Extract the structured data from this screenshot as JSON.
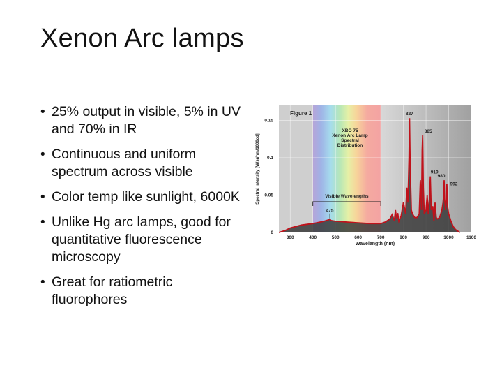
{
  "slide": {
    "title": "Xenon Arc lamps",
    "bullets": [
      "25% output in visible, 5% in UV and 70% in IR",
      "Continuous and uniform spectrum across visible",
      "Color temp like sunlight, 6000K",
      "Unlike Hg arc lamps, good for quantitative fluorescence microscopy",
      "Great for ratiometric fluorophores"
    ]
  },
  "chart_data": {
    "type": "line",
    "title": "Figure 1",
    "subtitle": "XBO 75 Xenon Arc Lamp Spectral Distribution",
    "xlabel": "Wavelength (nm)",
    "ylabel": "Spectral Intensity [W/sr/nm/1000cd]",
    "xlim": [
      250,
      1100
    ],
    "ylim": [
      0,
      0.17
    ],
    "x_ticks": [
      "300",
      "400",
      "500",
      "600",
      "700",
      "800",
      "900",
      "1000",
      "1100"
    ],
    "y_ticks": [
      "0",
      "0.05",
      "0.1",
      "0.15"
    ],
    "grid": true,
    "visible_band": {
      "label": "Visible Wavelengths",
      "range": [
        400,
        700
      ]
    },
    "peak_labels": [
      {
        "x": 475,
        "y": 0.018,
        "label": "475"
      },
      {
        "x": 827,
        "y": 0.153,
        "label": "827"
      },
      {
        "x": 885,
        "y": 0.13,
        "label": "885"
      },
      {
        "x": 919,
        "y": 0.075,
        "label": "919"
      },
      {
        "x": 980,
        "y": 0.07,
        "label": "980"
      },
      {
        "x": 992,
        "y": 0.065,
        "label": "992"
      }
    ],
    "series": [
      {
        "x": [
          250,
          280,
          300,
          350,
          400,
          450,
          470,
          475,
          480,
          500,
          550,
          600,
          650,
          700,
          720,
          740,
          750,
          760,
          765,
          770,
          775,
          780,
          790,
          800,
          810,
          815,
          820,
          825,
          827,
          830,
          835,
          840,
          850,
          860,
          870,
          875,
          880,
          883,
          885,
          888,
          892,
          900,
          905,
          910,
          915,
          919,
          923,
          930,
          935,
          940,
          945,
          950,
          960,
          970,
          975,
          978,
          980,
          982,
          986,
          990,
          992,
          995,
          1000,
          1010,
          1020,
          1030,
          1040,
          1050
        ],
        "y": [
          0.0,
          0.003,
          0.006,
          0.01,
          0.012,
          0.015,
          0.017,
          0.018,
          0.016,
          0.015,
          0.014,
          0.013,
          0.012,
          0.012,
          0.014,
          0.018,
          0.024,
          0.016,
          0.03,
          0.018,
          0.026,
          0.015,
          0.022,
          0.04,
          0.025,
          0.06,
          0.04,
          0.1,
          0.153,
          0.09,
          0.03,
          0.025,
          0.02,
          0.02,
          0.025,
          0.07,
          0.03,
          0.11,
          0.13,
          0.06,
          0.025,
          0.03,
          0.05,
          0.025,
          0.045,
          0.075,
          0.03,
          0.035,
          0.015,
          0.04,
          0.02,
          0.018,
          0.02,
          0.03,
          0.04,
          0.05,
          0.07,
          0.045,
          0.03,
          0.05,
          0.065,
          0.035,
          0.025,
          0.015,
          0.008,
          0.004,
          0.002,
          0.0
        ]
      }
    ]
  }
}
